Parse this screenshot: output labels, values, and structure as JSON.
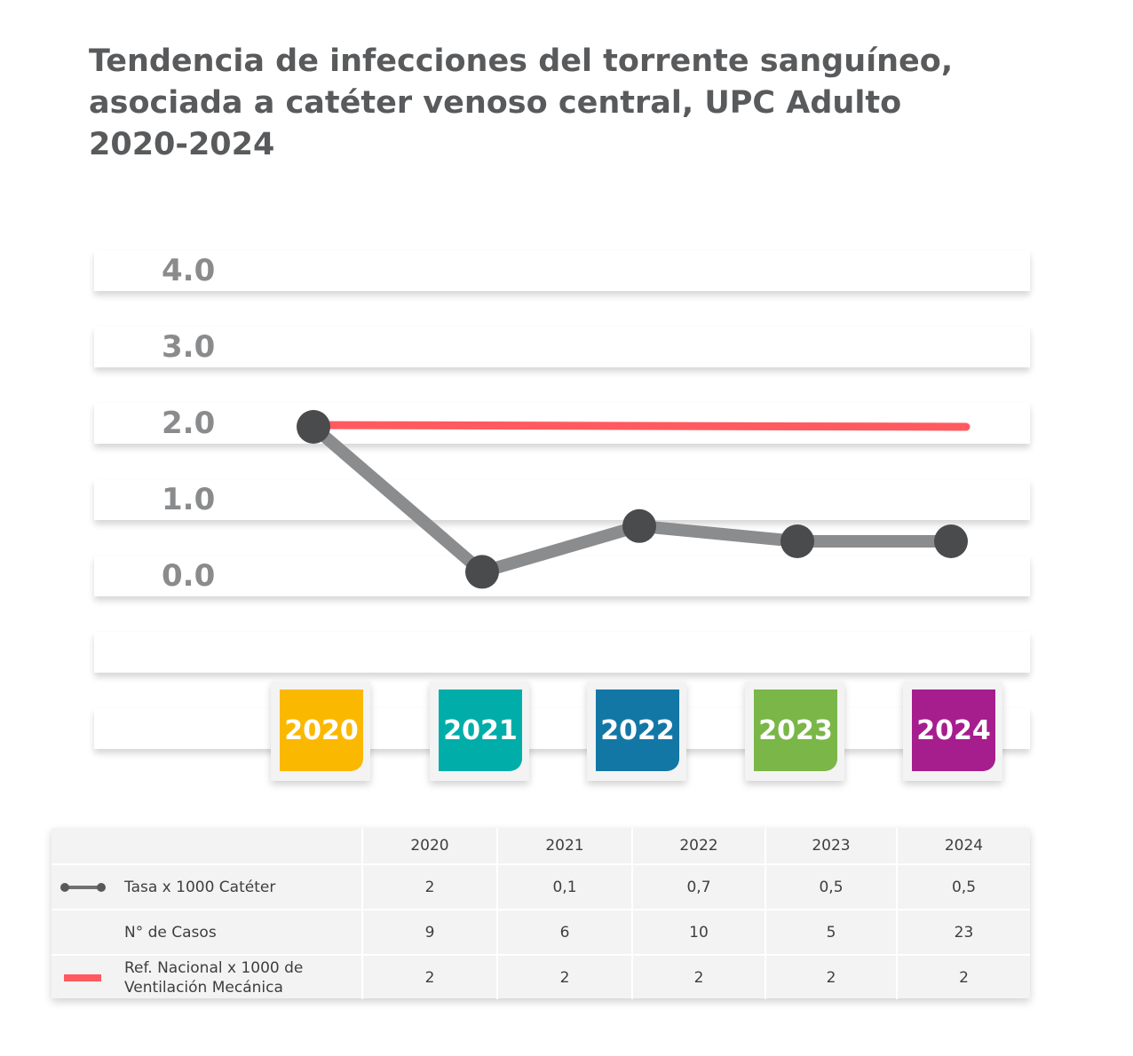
{
  "title": {
    "line1": "Tendencia de infecciones del torrente sanguíneo,",
    "line2": "asociada a catéter venoso central, UPC Adulto",
    "line3": "2020-2024"
  },
  "colors": {
    "series_line": "#8a8c8e",
    "series_marker": "#4a4b4d",
    "reference_line": "#ff5a5f",
    "year_2020": "#fbb800",
    "year_2021": "#00ada9",
    "year_2022": "#1377a6",
    "year_2023": "#7ab648",
    "year_2024": "#a61d8e"
  },
  "chart_data": {
    "type": "line",
    "categories": [
      "2020",
      "2021",
      "2022",
      "2023",
      "2024"
    ],
    "yticks": [
      "4.0",
      "3.0",
      "2.0",
      "1.0",
      "0.0"
    ],
    "ylim": [
      0,
      4
    ],
    "grid": true,
    "legend": "table-below",
    "series": [
      {
        "name": "Tasa x 1000 Catéter",
        "values": [
          2,
          0.1,
          0.7,
          0.5,
          0.5
        ]
      },
      {
        "name": "Ref. Nacional x 1000 de Ventilación Mecánica",
        "values": [
          2,
          2,
          2,
          2,
          2
        ]
      }
    ]
  },
  "table": {
    "headers": [
      "",
      "2020",
      "2021",
      "2022",
      "2023",
      "2024"
    ],
    "rows": [
      {
        "label": "Tasa x 1000 Catéter",
        "values": [
          "2",
          "0,1",
          "0,7",
          "0,5",
          "0,5"
        ]
      },
      {
        "label": "N° de Casos",
        "values": [
          "9",
          "6",
          "10",
          "5",
          "23"
        ]
      },
      {
        "label_line1": "Ref. Nacional x 1000 de",
        "label_line2": "Ventilación Mecánica",
        "values": [
          "2",
          "2",
          "2",
          "2",
          "2"
        ]
      }
    ]
  }
}
